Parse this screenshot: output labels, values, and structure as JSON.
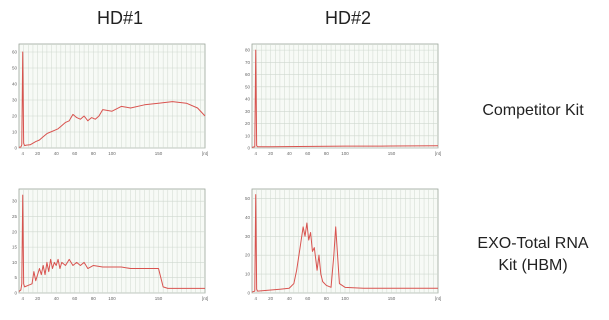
{
  "header": {
    "columns": [
      "HD#1",
      "HD#2"
    ]
  },
  "rows": [
    {
      "label_lines": [
        "Competitor Kit"
      ]
    },
    {
      "label_lines": [
        "EXO-Total RNA",
        "Kit (HBM)"
      ]
    }
  ],
  "colors": {
    "trace": "#d9534f",
    "grid": "#cfd8cf",
    "frame": "#9aa59a",
    "panel_bg": "#f7faf6"
  },
  "chart_data": [
    {
      "type": "line",
      "id": "competitor-hd1",
      "x_unit": "[nt]",
      "xlim": [
        0,
        200
      ],
      "ylim": [
        0,
        65
      ],
      "x_ticks": [
        4,
        20,
        40,
        60,
        80,
        100,
        150,
        200
      ],
      "x_tick_labels": [
        "4",
        "20",
        "40",
        "60",
        "80",
        "100",
        "150",
        "[nt]"
      ],
      "y_ticks": [
        0,
        10,
        20,
        30,
        40,
        50,
        60
      ],
      "points": [
        [
          0,
          0.5
        ],
        [
          2,
          0.6
        ],
        [
          3,
          2
        ],
        [
          4,
          60
        ],
        [
          5,
          3
        ],
        [
          6,
          1.5
        ],
        [
          8,
          1.8
        ],
        [
          12,
          2
        ],
        [
          18,
          4
        ],
        [
          22,
          5
        ],
        [
          26,
          7
        ],
        [
          30,
          9
        ],
        [
          34,
          10
        ],
        [
          38,
          11
        ],
        [
          42,
          12
        ],
        [
          46,
          14
        ],
        [
          50,
          16
        ],
        [
          54,
          17
        ],
        [
          58,
          21
        ],
        [
          62,
          19
        ],
        [
          66,
          18
        ],
        [
          70,
          20
        ],
        [
          74,
          17
        ],
        [
          78,
          19
        ],
        [
          82,
          18
        ],
        [
          86,
          20
        ],
        [
          90,
          24
        ],
        [
          100,
          23
        ],
        [
          110,
          26
        ],
        [
          120,
          25
        ],
        [
          135,
          27
        ],
        [
          150,
          28
        ],
        [
          165,
          29
        ],
        [
          180,
          28
        ],
        [
          192,
          25
        ],
        [
          200,
          20
        ]
      ]
    },
    {
      "type": "line",
      "id": "competitor-hd2",
      "x_unit": "[nt]",
      "xlim": [
        0,
        200
      ],
      "ylim": [
        0,
        85
      ],
      "x_ticks": [
        4,
        20,
        40,
        60,
        80,
        100,
        150,
        200
      ],
      "x_tick_labels": [
        "4",
        "20",
        "40",
        "60",
        "80",
        "100",
        "150",
        "[nt]"
      ],
      "y_ticks": [
        0,
        10,
        20,
        30,
        40,
        50,
        60,
        70,
        80
      ],
      "points": [
        [
          0,
          0.5
        ],
        [
          3,
          1
        ],
        [
          4,
          80
        ],
        [
          5,
          2
        ],
        [
          6,
          1
        ],
        [
          20,
          1
        ],
        [
          50,
          1.2
        ],
        [
          100,
          1.5
        ],
        [
          150,
          1.6
        ],
        [
          200,
          1.8
        ]
      ]
    },
    {
      "type": "line",
      "id": "exo-hd1",
      "x_unit": "[nt]",
      "xlim": [
        0,
        200
      ],
      "ylim": [
        0,
        34
      ],
      "x_ticks": [
        4,
        20,
        40,
        60,
        80,
        100,
        150,
        200
      ],
      "x_tick_labels": [
        "4",
        "20",
        "40",
        "60",
        "80",
        "100",
        "150",
        "[nt]"
      ],
      "y_ticks": [
        0,
        5,
        10,
        15,
        20,
        25,
        30
      ],
      "points": [
        [
          0,
          0.5
        ],
        [
          2,
          1
        ],
        [
          3,
          3
        ],
        [
          4,
          32
        ],
        [
          5,
          3
        ],
        [
          6,
          2
        ],
        [
          10,
          2.5
        ],
        [
          14,
          3
        ],
        [
          16,
          7
        ],
        [
          18,
          4
        ],
        [
          20,
          6
        ],
        [
          22,
          8
        ],
        [
          24,
          6
        ],
        [
          26,
          9
        ],
        [
          28,
          6
        ],
        [
          30,
          10
        ],
        [
          32,
          7
        ],
        [
          34,
          11
        ],
        [
          36,
          8
        ],
        [
          38,
          10
        ],
        [
          40,
          9
        ],
        [
          42,
          11
        ],
        [
          44,
          8
        ],
        [
          46,
          10
        ],
        [
          50,
          9
        ],
        [
          54,
          11
        ],
        [
          58,
          9
        ],
        [
          62,
          10
        ],
        [
          66,
          9
        ],
        [
          70,
          10
        ],
        [
          74,
          8
        ],
        [
          80,
          9
        ],
        [
          90,
          8.5
        ],
        [
          100,
          8.5
        ],
        [
          110,
          8.5
        ],
        [
          120,
          8
        ],
        [
          130,
          8
        ],
        [
          140,
          8
        ],
        [
          150,
          8
        ],
        [
          155,
          2
        ],
        [
          160,
          1.5
        ],
        [
          200,
          1.5
        ]
      ]
    },
    {
      "type": "line",
      "id": "exo-hd2",
      "x_unit": "[nt]",
      "xlim": [
        0,
        200
      ],
      "ylim": [
        0,
        55
      ],
      "x_ticks": [
        4,
        20,
        40,
        60,
        80,
        100,
        150,
        200
      ],
      "x_tick_labels": [
        "4",
        "20",
        "40",
        "60",
        "80",
        "100",
        "150",
        "[nt]"
      ],
      "y_ticks": [
        0,
        10,
        20,
        30,
        40,
        50
      ],
      "points": [
        [
          0,
          0.5
        ],
        [
          3,
          1
        ],
        [
          4,
          52
        ],
        [
          5,
          2
        ],
        [
          6,
          1
        ],
        [
          30,
          2
        ],
        [
          40,
          2.5
        ],
        [
          45,
          5
        ],
        [
          48,
          12
        ],
        [
          52,
          25
        ],
        [
          55,
          35
        ],
        [
          57,
          30
        ],
        [
          59,
          37
        ],
        [
          61,
          28
        ],
        [
          63,
          32
        ],
        [
          65,
          22
        ],
        [
          67,
          24
        ],
        [
          70,
          12
        ],
        [
          72,
          20
        ],
        [
          74,
          10
        ],
        [
          76,
          6
        ],
        [
          80,
          4
        ],
        [
          85,
          3
        ],
        [
          88,
          20
        ],
        [
          90,
          35
        ],
        [
          92,
          20
        ],
        [
          94,
          5
        ],
        [
          100,
          3
        ],
        [
          120,
          2.5
        ],
        [
          150,
          2.5
        ],
        [
          200,
          2.5
        ]
      ]
    }
  ]
}
